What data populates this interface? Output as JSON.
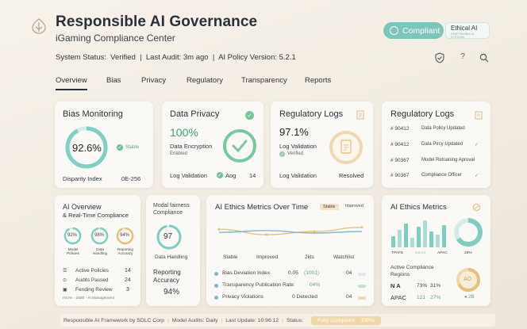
{
  "header": {
    "title": "Responsible AI Governance",
    "subtitle": "iGaming Compliance Center",
    "compliant_label": "Compliant",
    "ethical_title": "Ethical AI",
    "ethical_sub": "RESPONSIBLE AI SYSTEMS"
  },
  "status": {
    "text": "System Status:  Verified  |  Last Audit: 3m ago  |  AI Policy Version: 5.2.1"
  },
  "tabs": [
    "Overview",
    "Bias",
    "Privacy",
    "Regulatory",
    "Transparency",
    "Reports"
  ],
  "bias": {
    "title": "Bias Monitoring",
    "value": "92.6%",
    "badge": "Stable",
    "index_label": "Disparity Index",
    "index_value": "0E-256"
  },
  "privacy": {
    "title": "Data Privacy",
    "value": "100%",
    "l1": "Data Encryption",
    "l2": "Enabled",
    "log": "Log Validation",
    "aog": "Aog",
    "n": "14"
  },
  "reglogs1": {
    "title": "Regulatory Logs",
    "value": "97.1%",
    "l1": "Log Validation",
    "verified": "Verified",
    "log": "Log Validation",
    "resolved": "Resolved"
  },
  "reglogs2": {
    "title": "Regulatory Logs",
    "rows": [
      {
        "id": "# 90412",
        "text": "Data Policy Updated"
      },
      {
        "id": "# 90412",
        "text": "Data Pircy Updated"
      },
      {
        "id": "# 90367",
        "text": "Model Retraining Aproval"
      },
      {
        "id": "# 90367",
        "text": "Compliance Officer"
      }
    ]
  },
  "aio": {
    "title": "AI Overview",
    "title2": "& Real-Time Compliance",
    "r1": "92%",
    "r2": "98%",
    "r3": "94%",
    "l1": "Model Policies",
    "l2": "Data Handling",
    "l3": "Reporting Accuracy",
    "rows": [
      {
        "k": "Active Policies",
        "v": "14"
      },
      {
        "k": "Audits Passed",
        "v": "24"
      },
      {
        "k": "Fending Review",
        "v": "3"
      }
    ],
    "foot": "ISU% · 2000 · AI Management"
  },
  "fairness": {
    "t1": "Modal fairness",
    "t2": "Compliance",
    "ring": "97",
    "dh": "Data Handling",
    "ra1": "Reporting",
    "ra2": "Accuracy",
    "pct": "94%"
  },
  "ethics": {
    "title": "AI Ethics Metrics Over Time",
    "leg1": "Stable",
    "leg2": "Improved",
    "x": [
      "Stable",
      "Improved",
      "2kts",
      "Watchlist"
    ],
    "rows": [
      {
        "k": "Bias Deviation Index",
        "v": "0.05",
        "x": "(1001)",
        "n": "04"
      },
      {
        "k": "Transparency Publication Rate:",
        "v": "04%",
        "x": "",
        "n": ""
      },
      {
        "k": "Privacy Violations",
        "v": "0 Detected",
        "x": "",
        "n": "04"
      }
    ]
  },
  "ethics2": {
    "title": "AI Ethics Metrics",
    "x": [
      "TPAFE",
      "sorvot",
      "APAC",
      "29%"
    ],
    "sub1": "Active Compliance",
    "sub2": "Regions",
    "na": "N A",
    "na1": "73%",
    "na2": "31%",
    "apac": "APAC",
    "ap1": "121",
    "ap2": "27%",
    "ring": "AO",
    "badge": "2B"
  },
  "footer": {
    "a": "Responsible AI Framework by SDLC Corp",
    "b": "Model Audits: Daily",
    "c": "Last Update: 10:96:12",
    "d": "Status:",
    "e": "Fully Compliant",
    "f": "100%"
  },
  "chart_data": {
    "type": "line",
    "categories": [
      "Stable",
      "Improved",
      "2kts",
      "Watchlist"
    ],
    "series": [
      {
        "name": "Stable",
        "values": [
          62,
          45,
          55,
          68
        ]
      },
      {
        "name": "Improved",
        "values": [
          52,
          58,
          50,
          55
        ]
      }
    ],
    "ylim": [
      0,
      100
    ]
  }
}
